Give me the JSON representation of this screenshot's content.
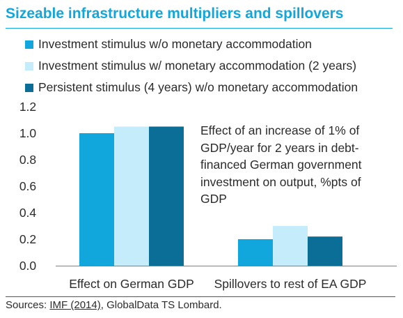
{
  "title": "Sizeable infrastructure multipliers and spillovers",
  "chart_data": {
    "type": "bar",
    "categories": [
      "Effect on German GDP",
      "Spillovers to rest of EA GDP"
    ],
    "series": [
      {
        "name": "Investment stimulus w/o monetary accommodation",
        "values": [
          1.0,
          0.2
        ],
        "color": "#12a7dc"
      },
      {
        "name": "Investment stimulus w/ monetary accommodation (2 years)",
        "values": [
          1.05,
          0.3
        ],
        "color": "#c5ecfb"
      },
      {
        "name": "Persistent stimulus (4 years) w/o monetary accommodation",
        "values": [
          1.05,
          0.22
        ],
        "color": "#0a6e96"
      }
    ],
    "yticks": [
      "0.0",
      "0.2",
      "0.4",
      "0.6",
      "0.8",
      "1.0",
      "1.2"
    ],
    "ylim": [
      0,
      1.2
    ],
    "grid": false,
    "legend_position": "top-left",
    "annotation": "Effect of an increase of 1% of GDP/year for 2 years in debt-financed German government investment on output, %pts of GDP"
  },
  "source": {
    "prefix": "Sources: ",
    "link": "IMF (2014)",
    "suffix": ", GlobalData TS Lombard."
  }
}
